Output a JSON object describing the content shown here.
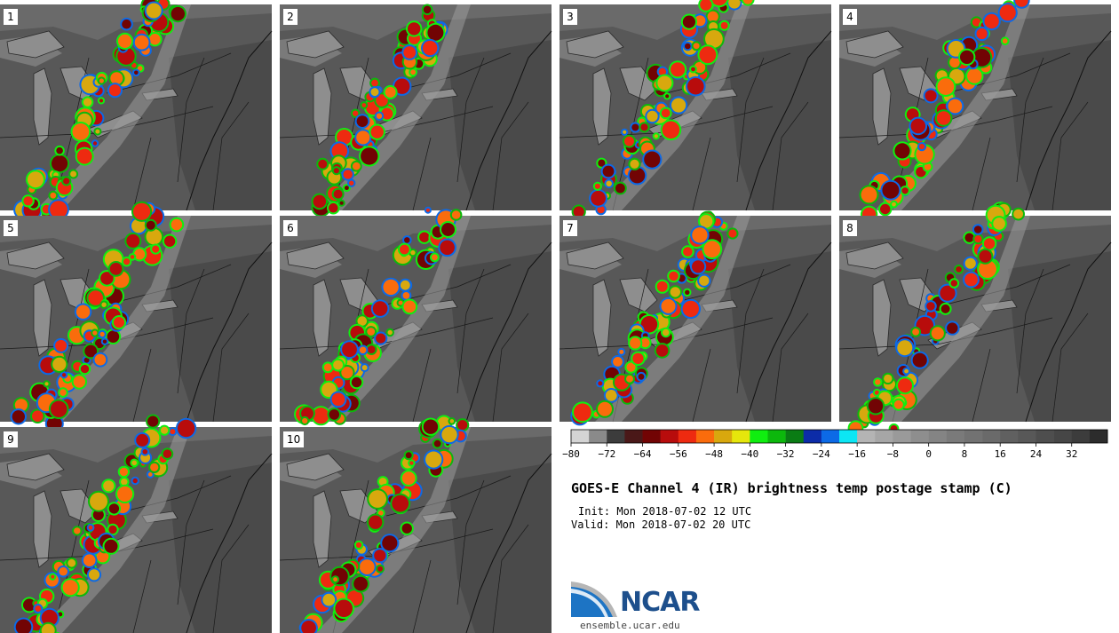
{
  "panels": [
    {
      "label": "1"
    },
    {
      "label": "2"
    },
    {
      "label": "3"
    },
    {
      "label": "4"
    },
    {
      "label": "5"
    },
    {
      "label": "6"
    },
    {
      "label": "7"
    },
    {
      "label": "8"
    },
    {
      "label": "9"
    },
    {
      "label": "10"
    }
  ],
  "chart_data": {
    "type": "heatmap",
    "title": "GOES-E Channel 4 (IR) brightness temp postage stamp (C)",
    "init": "Init: Mon 2018-07-02 12 UTC",
    "valid": "Valid: Mon 2018-07-02 20 UTC",
    "colorbar": {
      "min": -80,
      "max": 40,
      "step": 4,
      "tick_values": [
        -80,
        -72,
        -64,
        -56,
        -48,
        -40,
        -32,
        -24,
        -16,
        -8,
        0,
        8,
        16,
        24,
        32
      ],
      "tick_labels": [
        "−80",
        "−72",
        "−64",
        "−56",
        "−48",
        "−40",
        "−32",
        "−24",
        "−16",
        "−8",
        "0",
        "8",
        "16",
        "24",
        "32"
      ],
      "colors": [
        "#d4d4d4",
        "#8a8a8a",
        "#3c3c3c",
        "#4a1818",
        "#720404",
        "#b80c0c",
        "#ee2a10",
        "#fa6c0c",
        "#d8a80e",
        "#e6e60c",
        "#10ee10",
        "#0cb80c",
        "#0a7c14",
        "#0c2ca8",
        "#0c6ae6",
        "#0ce6f4",
        "#b4b4b4",
        "#a6a6a6",
        "#9a9a9a",
        "#8e8e8e",
        "#848484",
        "#7a7a7a",
        "#727272",
        "#6a6a6a",
        "#606060",
        "#585858",
        "#4e4e4e",
        "#464646",
        "#3c3c3c",
        "#2c2c2c"
      ]
    }
  },
  "logo": {
    "text": "NCAR",
    "site": "ensemble.ucar.edu"
  }
}
